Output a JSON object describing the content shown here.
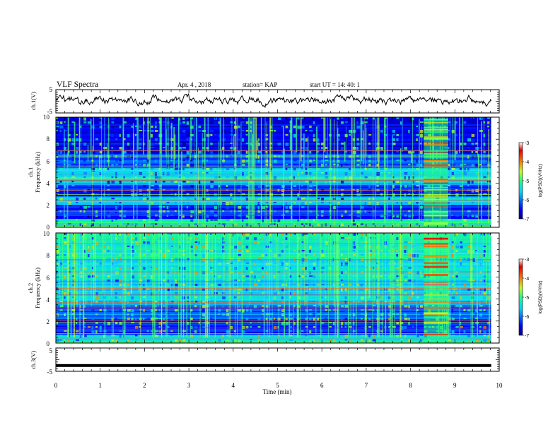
{
  "header": {
    "title": "VLF Spectra",
    "date": "Apr. 4 , 2018",
    "station": "station= KAP",
    "start_ut": "start  UT =   14: 40: 1"
  },
  "chart_data": [
    {
      "type": "line",
      "ylabel": "ch.1(V)",
      "ylim": [
        -5,
        5
      ],
      "yticks": [
        "5",
        "-5"
      ],
      "xlim": [
        0,
        10
      ],
      "description": "noisy waveform roughly between -2 and 3 V"
    },
    {
      "type": "heatmap",
      "ylabel_line1": "ch.1",
      "ylabel_line2": "Frequency (kHz)",
      "xlim": [
        0,
        10
      ],
      "ylim": [
        0,
        10
      ],
      "yticks": [
        "0",
        "2",
        "4",
        "6",
        "8",
        "10"
      ],
      "colorbar": {
        "label": "log(PSD)(V²/Hz)",
        "ticks": [
          "-3",
          "-4",
          "-5",
          "-6",
          "-7"
        ],
        "range": [
          -7,
          -3
        ]
      },
      "burst_interval_min": [
        8.3,
        8.85
      ]
    },
    {
      "type": "heatmap",
      "ylabel_line1": "ch.2",
      "ylabel_line2": "Frequency (kHz)",
      "xlim": [
        0,
        10
      ],
      "ylim": [
        0,
        10
      ],
      "yticks": [
        "0",
        "2",
        "4",
        "6",
        "8",
        "10"
      ],
      "colorbar": {
        "label": "log(PSD)(V²/Hz)",
        "ticks": [
          "-3",
          "-4",
          "-5",
          "-6",
          "-7"
        ],
        "range": [
          -7,
          -3
        ]
      },
      "burst_interval_min": [
        8.3,
        8.85
      ]
    },
    {
      "type": "line",
      "ylabel": "ch.3(V)",
      "ylim": [
        -5,
        5
      ],
      "yticks": [
        "5",
        "-5"
      ],
      "xlim": [
        0,
        10
      ],
      "constant_value": -2.5
    }
  ],
  "xaxis": {
    "label": "Time  (min)",
    "ticks": [
      "0",
      "1",
      "2",
      "3",
      "4",
      "5",
      "6",
      "7",
      "8",
      "9",
      "10"
    ],
    "data_end_min": 9.82
  }
}
